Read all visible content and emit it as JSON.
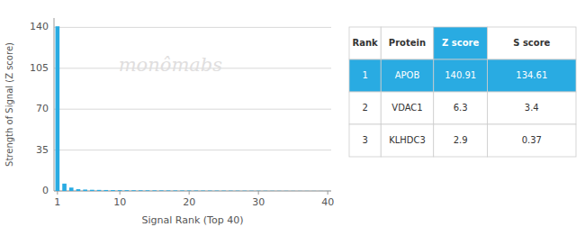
{
  "chart_data": {
    "type": "bar",
    "x": [
      1,
      2,
      3,
      4,
      5,
      6,
      7,
      8,
      9,
      10,
      11,
      12,
      13,
      14,
      15,
      16,
      17,
      18,
      19,
      20,
      21,
      22,
      23,
      24,
      25,
      26,
      27,
      28,
      29,
      30,
      31,
      32,
      33,
      34,
      35,
      36,
      37,
      38,
      39,
      40
    ],
    "values": [
      140.91,
      6.3,
      2.9,
      1.5,
      1.2,
      1.0,
      0.9,
      0.8,
      0.75,
      0.7,
      0.65,
      0.6,
      0.58,
      0.55,
      0.52,
      0.5,
      0.48,
      0.46,
      0.44,
      0.42,
      0.4,
      0.38,
      0.36,
      0.34,
      0.32,
      0.3,
      0.28,
      0.26,
      0.24,
      0.22,
      0.2,
      0.18,
      0.16,
      0.14,
      0.12,
      0.1,
      0.09,
      0.08,
      0.07,
      0.06
    ],
    "color": "#29ABE2",
    "x_label": "Signal Rank (Top 40)",
    "y_label": "Strength of Signal (Z score)",
    "xlim": [
      0.5,
      40.5
    ],
    "xticks": [
      1,
      10,
      20,
      30,
      40
    ],
    "ylim": [
      0,
      148
    ],
    "yticks": [
      0,
      35,
      70,
      105,
      140
    ],
    "grid": true,
    "annotations": [
      {
        "text": "monômabs",
        "color": "#e0dede"
      }
    ],
    "table": {
      "header": [
        "Rank",
        "Protein",
        "Z score",
        "S score"
      ],
      "rows": [
        [
          "1",
          "APOB",
          "140.91",
          "134.61"
        ],
        [
          "2",
          "VDAC1",
          "6.3",
          "3.4"
        ],
        [
          "3",
          "KLHDC3",
          "2.9",
          "0.37"
        ]
      ],
      "color": "#29ABE2"
    }
  }
}
